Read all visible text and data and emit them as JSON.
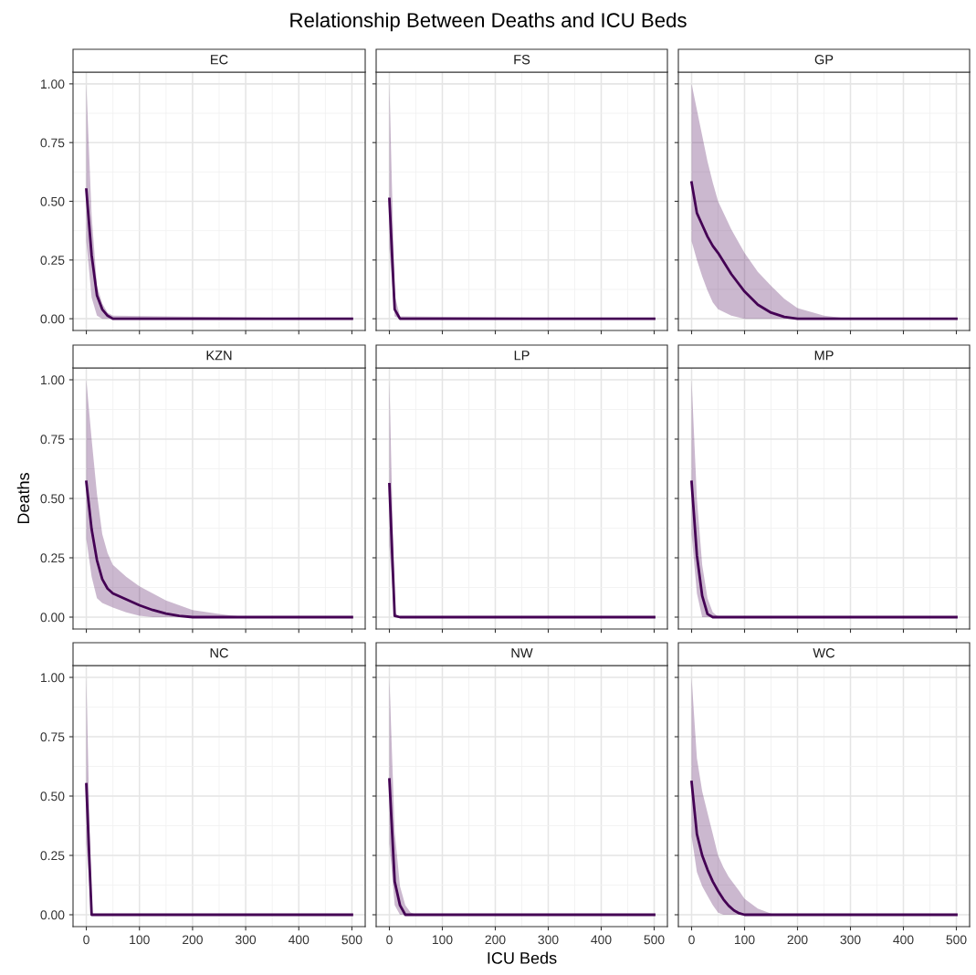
{
  "chart_data": [
    {
      "type": "line",
      "title": "EC",
      "xlim": [
        -25,
        525
      ],
      "ylim": [
        -0.05,
        1.05
      ],
      "yticks": [
        {
          "value": 0,
          "label": "0.00"
        },
        {
          "value": 0.25,
          "label": "0.25"
        },
        {
          "value": 0.5,
          "label": "0.50"
        },
        {
          "value": 0.75,
          "label": "0.75"
        },
        {
          "value": 1,
          "label": "1.00"
        }
      ],
      "grid": true,
      "tick_labels": "y",
      "series": [
        {
          "color": "#440154",
          "x": [
            0,
            10,
            20,
            30,
            40,
            50,
            500
          ],
          "values": [
            0.55,
            0.27,
            0.1,
            0.04,
            0.013,
            0,
            0
          ],
          "lower": [
            0.33,
            0.09,
            0.013,
            0,
            0,
            0,
            0
          ],
          "upper": [
            1.0,
            0.44,
            0.14,
            0.065,
            0.026,
            0.013,
            0
          ]
        }
      ]
    },
    {
      "type": "line",
      "title": "FS",
      "xlim": [
        -25,
        525
      ],
      "ylim": [
        -0.05,
        1.05
      ],
      "grid": true,
      "tick_labels": false,
      "annotations": [
        "Relationship Between Deaths and ICU Beds"
      ],
      "series": [
        {
          "color": "#440154",
          "x": [
            0,
            10,
            20,
            500
          ],
          "values": [
            0.51,
            0.04,
            0,
            0
          ],
          "lower": [
            0.3,
            0.01,
            0,
            0
          ],
          "upper": [
            1.0,
            0.1,
            0.01,
            0
          ]
        }
      ]
    },
    {
      "type": "line",
      "title": "GP",
      "xlim": [
        -25,
        525
      ],
      "ylim": [
        -0.05,
        1.05
      ],
      "grid": true,
      "tick_labels": false,
      "series": [
        {
          "color": "#440154",
          "x": [
            0,
            10,
            20,
            30,
            40,
            50,
            75,
            100,
            125,
            150,
            175,
            200,
            250,
            300,
            500
          ],
          "values": [
            0.58,
            0.45,
            0.4,
            0.35,
            0.31,
            0.28,
            0.19,
            0.116,
            0.06,
            0.026,
            0.008,
            0,
            0,
            0,
            0
          ],
          "lower": [
            0.33,
            0.25,
            0.18,
            0.12,
            0.07,
            0.04,
            0.013,
            0,
            0,
            0,
            0,
            0,
            0,
            0,
            0
          ],
          "upper": [
            1.0,
            0.89,
            0.78,
            0.67,
            0.58,
            0.5,
            0.38,
            0.28,
            0.2,
            0.14,
            0.085,
            0.045,
            0.013,
            0,
            0
          ]
        }
      ]
    },
    {
      "type": "line",
      "title": "KZN",
      "ylabel": "Deaths",
      "xlim": [
        -25,
        525
      ],
      "ylim": [
        -0.05,
        1.05
      ],
      "yticks": [
        {
          "value": 0,
          "label": "0.00"
        },
        {
          "value": 0.25,
          "label": "0.25"
        },
        {
          "value": 0.5,
          "label": "0.50"
        },
        {
          "value": 0.75,
          "label": "0.75"
        },
        {
          "value": 1,
          "label": "1.00"
        }
      ],
      "grid": true,
      "tick_labels": "y",
      "series": [
        {
          "color": "#440154",
          "x": [
            0,
            10,
            20,
            30,
            40,
            50,
            75,
            100,
            125,
            150,
            175,
            200,
            250,
            300,
            500
          ],
          "values": [
            0.57,
            0.37,
            0.24,
            0.16,
            0.12,
            0.1,
            0.075,
            0.05,
            0.03,
            0.015,
            0.005,
            0,
            0,
            0,
            0
          ],
          "lower": [
            0.33,
            0.17,
            0.08,
            0.06,
            0.05,
            0.04,
            0.02,
            0.006,
            0,
            0,
            0,
            0,
            0,
            0,
            0
          ],
          "upper": [
            1.0,
            0.75,
            0.52,
            0.35,
            0.27,
            0.22,
            0.17,
            0.13,
            0.1,
            0.07,
            0.05,
            0.03,
            0.013,
            0,
            0
          ]
        }
      ]
    },
    {
      "type": "line",
      "title": "LP",
      "xlim": [
        -25,
        525
      ],
      "ylim": [
        -0.05,
        1.05
      ],
      "grid": true,
      "tick_labels": false,
      "series": [
        {
          "color": "#440154",
          "x": [
            0,
            10,
            20,
            500
          ],
          "values": [
            0.56,
            0.005,
            0,
            0
          ],
          "lower": [
            0.3,
            0,
            0,
            0
          ],
          "upper": [
            1.0,
            0.02,
            0,
            0
          ]
        }
      ]
    },
    {
      "type": "line",
      "title": "MP",
      "xlim": [
        -25,
        525
      ],
      "ylim": [
        -0.05,
        1.05
      ],
      "grid": true,
      "tick_labels": false,
      "series": [
        {
          "color": "#440154",
          "x": [
            0,
            10,
            20,
            30,
            40,
            50,
            60,
            500
          ],
          "values": [
            0.57,
            0.26,
            0.09,
            0.013,
            0,
            0,
            0,
            0
          ],
          "lower": [
            0.35,
            0.1,
            0,
            0,
            0,
            0,
            0,
            0
          ],
          "upper": [
            1.0,
            0.5,
            0.22,
            0.08,
            0.02,
            0.003,
            0,
            0
          ]
        }
      ]
    },
    {
      "type": "line",
      "title": "NC",
      "xlim": [
        -25,
        525
      ],
      "ylim": [
        -0.05,
        1.05
      ],
      "xticks": [
        0,
        100,
        200,
        300,
        400,
        500
      ],
      "yticks": [
        {
          "value": 0,
          "label": "0.00"
        },
        {
          "value": 0.25,
          "label": "0.25"
        },
        {
          "value": 0.5,
          "label": "0.50"
        },
        {
          "value": 0.75,
          "label": "0.75"
        },
        {
          "value": 1,
          "label": "1.00"
        }
      ],
      "grid": true,
      "series": [
        {
          "color": "#440154",
          "x": [
            0,
            10,
            500
          ],
          "values": [
            0.55,
            0,
            0
          ],
          "lower": [
            0.3,
            0,
            0
          ],
          "upper": [
            1.0,
            0,
            0
          ]
        }
      ]
    },
    {
      "type": "line",
      "title": "NW",
      "xlabel": "ICU Beds",
      "xlim": [
        -25,
        525
      ],
      "ylim": [
        -0.05,
        1.05
      ],
      "xticks": [
        0,
        100,
        200,
        300,
        400,
        500
      ],
      "grid": true,
      "tick_labels": "x",
      "series": [
        {
          "color": "#440154",
          "x": [
            0,
            10,
            20,
            30,
            40,
            50,
            500
          ],
          "values": [
            0.57,
            0.14,
            0.04,
            0,
            0,
            0,
            0
          ],
          "lower": [
            0.3,
            0.04,
            0,
            0,
            0,
            0,
            0
          ],
          "upper": [
            1.0,
            0.35,
            0.12,
            0.04,
            0.01,
            0,
            0
          ]
        }
      ]
    },
    {
      "type": "line",
      "title": "WC",
      "xlim": [
        -25,
        525
      ],
      "ylim": [
        -0.05,
        1.05
      ],
      "xticks": [
        0,
        100,
        200,
        300,
        400,
        500
      ],
      "grid": true,
      "tick_labels": "x",
      "series": [
        {
          "color": "#440154",
          "x": [
            0,
            10,
            20,
            30,
            40,
            50,
            60,
            70,
            80,
            90,
            100,
            125,
            150,
            160,
            500
          ],
          "values": [
            0.56,
            0.34,
            0.25,
            0.19,
            0.14,
            0.1,
            0.065,
            0.038,
            0.018,
            0.006,
            0,
            0,
            0,
            0,
            0
          ],
          "lower": [
            0.33,
            0.18,
            0.12,
            0.08,
            0.04,
            0.009,
            0,
            0,
            0,
            0,
            0,
            0,
            0,
            0,
            0
          ],
          "upper": [
            1.0,
            0.66,
            0.52,
            0.43,
            0.34,
            0.25,
            0.2,
            0.16,
            0.13,
            0.1,
            0.067,
            0.026,
            0.005,
            0,
            0
          ]
        }
      ]
    }
  ]
}
